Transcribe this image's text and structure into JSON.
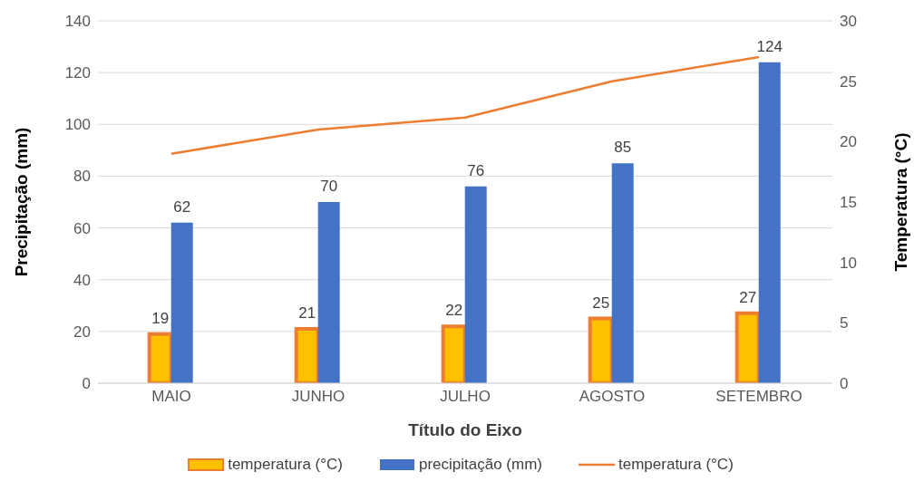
{
  "chart_data": {
    "type": "bar",
    "xlabel": "Título do Eixo",
    "ylabel": "Precipitação (mm)",
    "y2label": "Temperatura (°C)",
    "categories": [
      "MAIO",
      "JUNHO",
      "JULHO",
      "AGOSTO",
      "SETEMBRO"
    ],
    "series": [
      {
        "name": "temperatura (°C)",
        "color": "#ffc000",
        "values": [
          19,
          21,
          22,
          25,
          27
        ],
        "value_labels": [
          "19",
          "21",
          "22",
          "25",
          "27"
        ]
      },
      {
        "name": "precipitação (mm)",
        "color": "#4472c4",
        "values": [
          62,
          70,
          76,
          85,
          124
        ],
        "value_labels": [
          "62",
          "70",
          "76",
          "85",
          "124"
        ]
      },
      {
        "name": "temperatura (°C)",
        "type": "line",
        "axis": "y2",
        "color": "#ed7d31",
        "values": [
          19,
          21,
          22,
          25,
          27
        ]
      }
    ],
    "ylim": [
      0,
      140
    ],
    "yticks": [
      0,
      20,
      40,
      60,
      80,
      100,
      120,
      140
    ],
    "y2lim": [
      0,
      30
    ],
    "y2ticks": [
      0,
      5,
      10,
      15,
      20,
      25,
      30
    ],
    "grid": "y",
    "legend": "bottom",
    "marker": "none"
  }
}
